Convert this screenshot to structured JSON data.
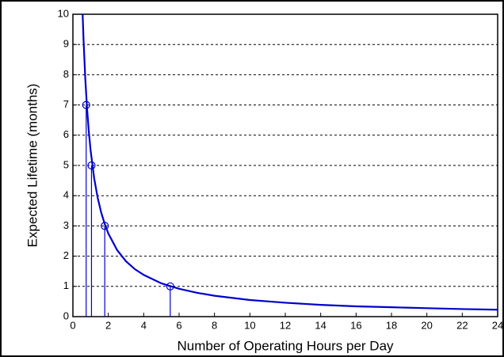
{
  "chart_data": {
    "type": "line",
    "xlabel": "Number of Operating Hours per Day",
    "ylabel": "Expected Lifetime (months)",
    "xlim": [
      0,
      24
    ],
    "xticks": [
      0,
      2,
      4,
      6,
      8,
      10,
      12,
      14,
      16,
      18,
      20,
      22,
      24
    ],
    "ylim": [
      0,
      10
    ],
    "yticks": [
      0,
      1,
      2,
      3,
      4,
      5,
      6,
      7,
      8,
      9,
      10
    ],
    "grid": "y-dashed",
    "series": [
      {
        "color": "#0000cc",
        "x": [
          0.55,
          0.6,
          0.7,
          0.8,
          0.9,
          1,
          1.2,
          1.4,
          1.6,
          1.8,
          2,
          2.5,
          3,
          3.5,
          4,
          5,
          6,
          7,
          8,
          10,
          12,
          14,
          16,
          18,
          20,
          22,
          24
        ],
        "values": [
          10,
          9.17,
          7.86,
          6.88,
          6.11,
          5.5,
          4.58,
          3.93,
          3.44,
          3.06,
          2.75,
          2.2,
          1.83,
          1.57,
          1.38,
          1.1,
          0.92,
          0.79,
          0.69,
          0.55,
          0.46,
          0.39,
          0.34,
          0.31,
          0.28,
          0.25,
          0.23
        ]
      },
      {
        "color": "#0000cc",
        "marker": "circle",
        "stem": true,
        "x": [
          0.75,
          1.05,
          1.8,
          5.5
        ],
        "values": [
          7,
          5,
          3,
          1
        ]
      }
    ]
  }
}
